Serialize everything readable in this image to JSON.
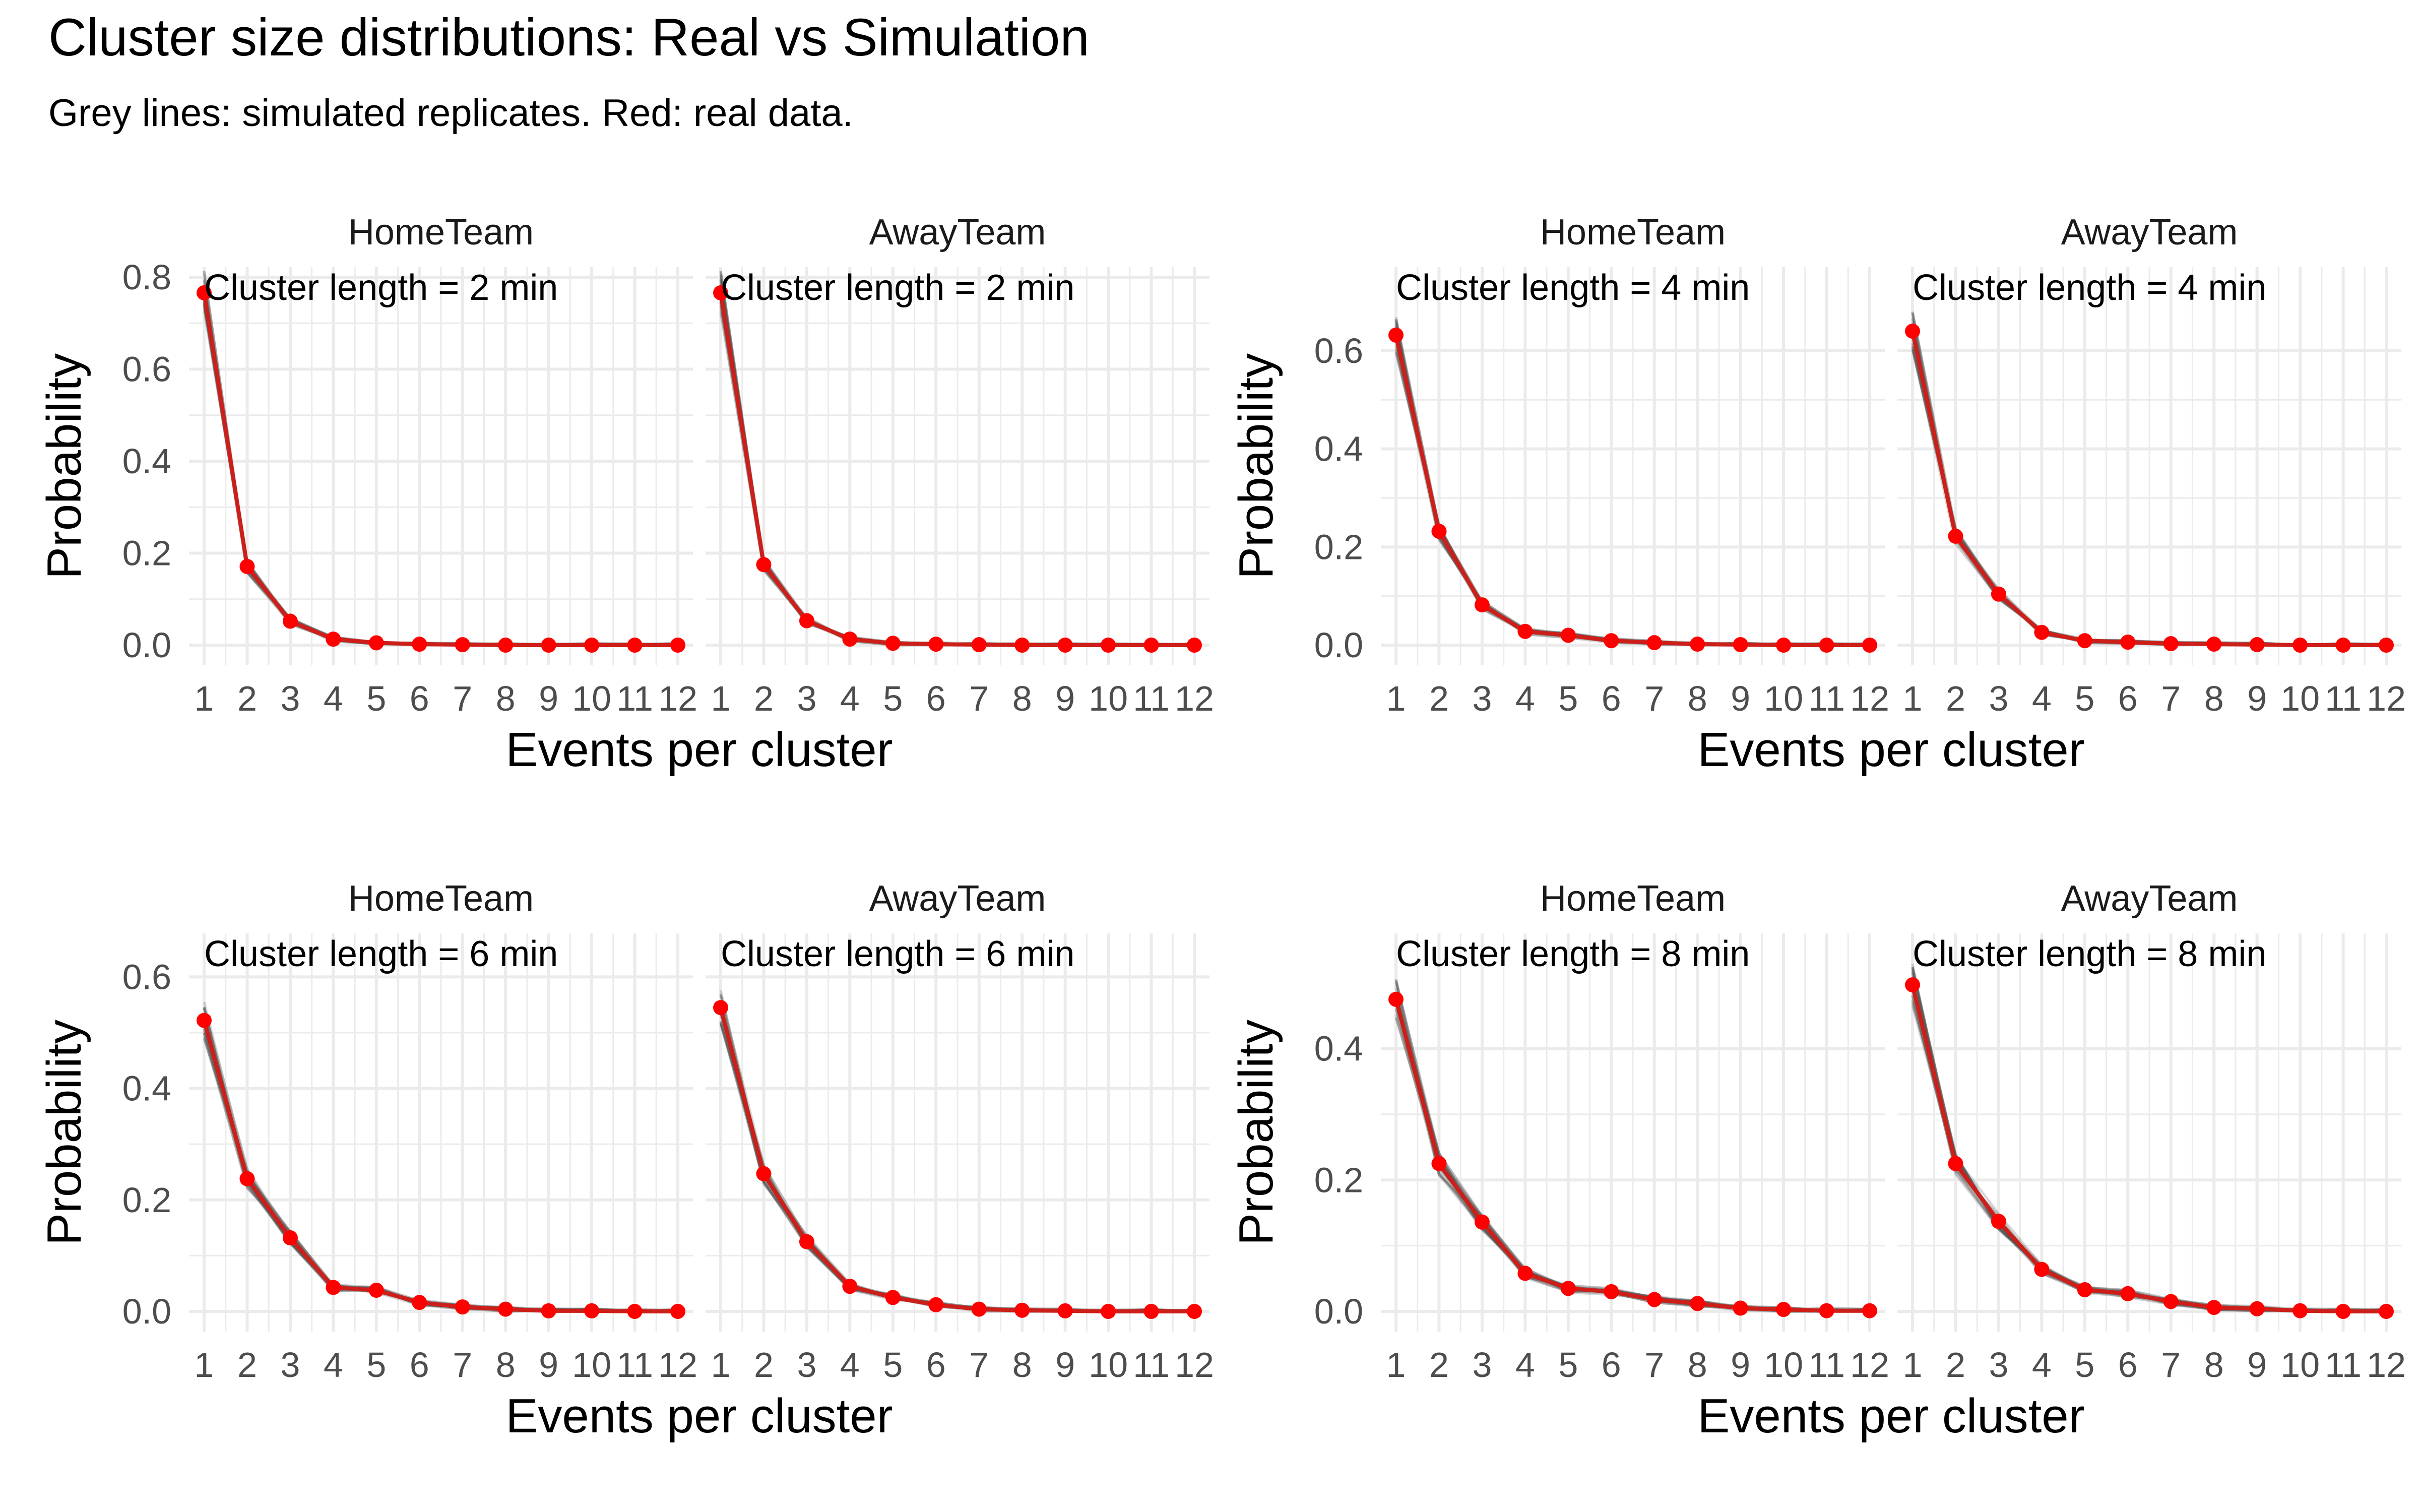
{
  "chart_data": {
    "type": "line",
    "title": "Cluster size distributions: Real vs Simulation",
    "subtitle": "Grey lines: simulated replicates. Red: real data.",
    "xlabel": "Events per cluster",
    "ylabel": "Probability",
    "x": [
      1,
      2,
      3,
      4,
      5,
      6,
      7,
      8,
      9,
      10,
      11,
      12
    ],
    "x_tick_labels": [
      "1",
      "2",
      "3",
      "4",
      "5",
      "6",
      "7",
      "8",
      "9",
      "10",
      "11",
      "12"
    ],
    "colors": {
      "real": "#ff0000",
      "real_line": "#cc1f1a",
      "simulated": "#4a4a4a",
      "grid": "#ebebeb"
    },
    "panels": [
      {
        "cluster_label": "Cluster length = 2 min",
        "ylim": [
          0,
          0.8
        ],
        "yticks": [
          0,
          0.2,
          0.4,
          0.6,
          0.8
        ],
        "y_tick_labels": [
          "0.0",
          "0.2",
          "0.4",
          "0.6",
          "0.8"
        ],
        "facets": [
          {
            "strip": "HomeTeam",
            "real": [
              0.766,
              0.171,
              0.052,
              0.013,
              0.005,
              0.002,
              0.001,
              0.0,
              0.0,
              0.0,
              0.0,
              0.0
            ]
          },
          {
            "strip": "AwayTeam",
            "real": [
              0.766,
              0.175,
              0.053,
              0.013,
              0.004,
              0.002,
              0.001,
              0.0,
              0.0,
              0.0,
              0.0,
              0.0
            ]
          }
        ]
      },
      {
        "cluster_label": "Cluster length = 4 min",
        "ylim": [
          0,
          0.75
        ],
        "yticks": [
          0,
          0.2,
          0.4,
          0.6
        ],
        "y_tick_labels": [
          "0.0",
          "0.2",
          "0.4",
          "0.6"
        ],
        "facets": [
          {
            "strip": "HomeTeam",
            "real": [
              0.632,
              0.232,
              0.082,
              0.028,
              0.02,
              0.009,
              0.005,
              0.002,
              0.001,
              0.0,
              0.0,
              0.0
            ]
          },
          {
            "strip": "AwayTeam",
            "real": [
              0.64,
              0.222,
              0.104,
              0.026,
              0.009,
              0.006,
              0.003,
              0.002,
              0.001,
              0.0,
              0.0,
              0.0
            ]
          }
        ]
      },
      {
        "cluster_label": "Cluster length = 6 min",
        "ylim": [
          0,
          0.66
        ],
        "yticks": [
          0,
          0.2,
          0.4,
          0.6
        ],
        "y_tick_labels": [
          "0.0",
          "0.2",
          "0.4",
          "0.6"
        ],
        "facets": [
          {
            "strip": "HomeTeam",
            "real": [
              0.522,
              0.238,
              0.132,
              0.043,
              0.038,
              0.016,
              0.008,
              0.004,
              0.001,
              0.001,
              0.0,
              0.0
            ]
          },
          {
            "strip": "AwayTeam",
            "real": [
              0.545,
              0.247,
              0.125,
              0.045,
              0.025,
              0.012,
              0.004,
              0.002,
              0.001,
              0.0,
              0.0,
              0.0
            ]
          }
        ]
      },
      {
        "cluster_label": "Cluster length = 8 min",
        "ylim": [
          0,
          0.56
        ],
        "yticks": [
          0,
          0.2,
          0.4
        ],
        "y_tick_labels": [
          "0.0",
          "0.2",
          "0.4"
        ],
        "facets": [
          {
            "strip": "HomeTeam",
            "real": [
              0.475,
              0.225,
              0.136,
              0.058,
              0.035,
              0.03,
              0.018,
              0.012,
              0.005,
              0.003,
              0.001,
              0.001
            ]
          },
          {
            "strip": "AwayTeam",
            "real": [
              0.497,
              0.225,
              0.137,
              0.064,
              0.033,
              0.027,
              0.015,
              0.006,
              0.004,
              0.001,
              0.0,
              0.0
            ]
          }
        ]
      }
    ]
  }
}
